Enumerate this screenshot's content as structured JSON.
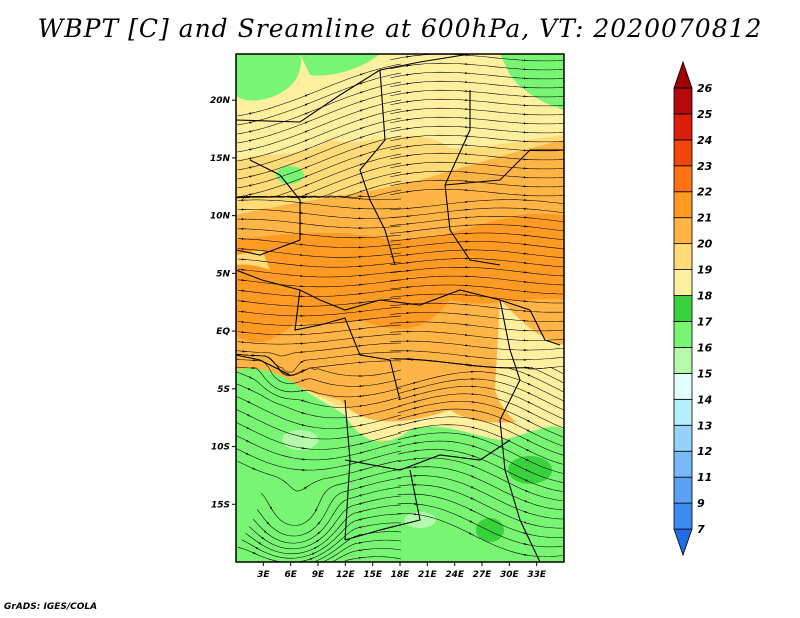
{
  "title": "WBPT [C] and Sreamline at 600hPa, VT: 2020070812",
  "credit": "GrADS: IGES/COLA",
  "map": {
    "variable": "Wet-bulb potential temperature",
    "units": "C",
    "level": "600hPa",
    "valid_time": "2020070812",
    "region": "Central / West-Central Africa",
    "lon_range": [
      0,
      36
    ],
    "lat_range": [
      -20,
      24
    ],
    "lat_labels": [
      {
        "lat": 20,
        "label": "20N"
      },
      {
        "lat": 15,
        "label": "15N"
      },
      {
        "lat": 10,
        "label": "10N"
      },
      {
        "lat": 5,
        "label": "5N"
      },
      {
        "lat": 0,
        "label": "EQ"
      },
      {
        "lat": -5,
        "label": "5S"
      },
      {
        "lat": -10,
        "label": "10S"
      },
      {
        "lat": -15,
        "label": "15S"
      }
    ],
    "lon_labels": [
      {
        "lon": 3,
        "label": "3E"
      },
      {
        "lon": 6,
        "label": "6E"
      },
      {
        "lon": 9,
        "label": "9E"
      },
      {
        "lon": 12,
        "label": "12E"
      },
      {
        "lon": 15,
        "label": "15E"
      },
      {
        "lon": 18,
        "label": "18E"
      },
      {
        "lon": 21,
        "label": "21E"
      },
      {
        "lon": 24,
        "label": "24E"
      },
      {
        "lon": 27,
        "label": "27E"
      },
      {
        "lon": 30,
        "label": "30E"
      },
      {
        "lon": 33,
        "label": "33E"
      }
    ]
  },
  "colorbar": {
    "levels": [
      "7",
      "9",
      "11",
      "12",
      "13",
      "14",
      "15",
      "16",
      "17",
      "18",
      "19",
      "20",
      "21",
      "22",
      "23",
      "24",
      "25",
      "26"
    ],
    "colors": [
      "#1e6ee6",
      "#3c8cf0",
      "#5aa0f5",
      "#78b9fa",
      "#96d2fa",
      "#b4f0fa",
      "#e1ffff",
      "#b4faaa",
      "#78f573",
      "#37d23c",
      "#fff0a0",
      "#ffdc78",
      "#ffb446",
      "#ff9b23",
      "#ff7314",
      "#f0460a",
      "#dc1e0a",
      "#b40a0a",
      "#a00000"
    ]
  },
  "field_colors": {
    "t16": "#b4faaa",
    "t17": "#78f573",
    "t18": "#37d23c",
    "t19": "#fff0a0",
    "t20": "#ffdc78",
    "t21": "#ffb446",
    "t22": "#ff9b23"
  }
}
